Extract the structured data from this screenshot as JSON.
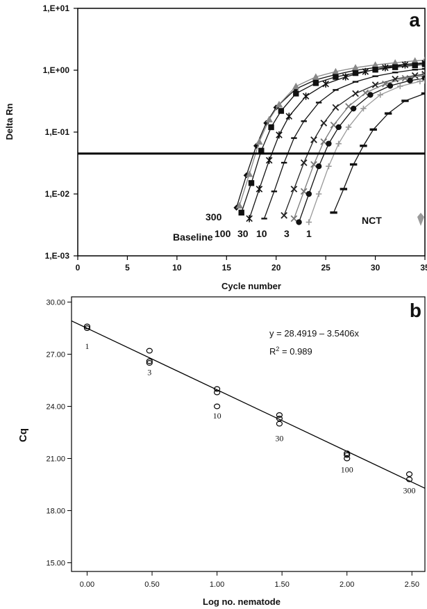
{
  "chart_data": [
    {
      "panel": "a",
      "type": "line",
      "xlabel": "Cycle number",
      "ylabel": "Delta Rn",
      "xlim": [
        0,
        35
      ],
      "ylim": [
        0.001,
        10
      ],
      "y_scale": "log",
      "x_ticks": [
        "0",
        "5",
        "10",
        "15",
        "20",
        "25",
        "30",
        "35"
      ],
      "y_ticks": [
        "1,E-03",
        "1,E-02",
        "1,E-01",
        "1,E+00",
        "1,E+01"
      ],
      "threshold": 0.045,
      "grid": false,
      "legend": "none",
      "series": [
        {
          "name": "300",
          "marker": "diamond",
          "color": "#111111",
          "x": [
            16.0,
            17.0,
            18.0,
            19.0,
            20.0,
            22.0,
            24.0,
            26.0,
            28.0,
            30.0,
            32.0,
            34.0,
            35.0
          ],
          "y": [
            0.006,
            0.02,
            0.06,
            0.14,
            0.25,
            0.5,
            0.7,
            0.85,
            1.0,
            1.1,
            1.2,
            1.28,
            1.32
          ]
        },
        {
          "name": "300",
          "marker": "triangle",
          "color": "#888888",
          "x": [
            16.3,
            17.3,
            18.3,
            19.3,
            20.3,
            22.0,
            24.0,
            26.0,
            28.0,
            30.0,
            32.0,
            34.0,
            35.0
          ],
          "y": [
            0.0065,
            0.021,
            0.07,
            0.16,
            0.28,
            0.55,
            0.78,
            0.95,
            1.1,
            1.22,
            1.32,
            1.42,
            1.45
          ]
        },
        {
          "name": "100",
          "marker": "square",
          "color": "#111111",
          "x": [
            16.5,
            17.5,
            18.5,
            19.5,
            20.5,
            22.0,
            24.0,
            26.0,
            28.0,
            30.0,
            32.0,
            34.0,
            35.0
          ],
          "y": [
            0.005,
            0.015,
            0.05,
            0.12,
            0.22,
            0.42,
            0.62,
            0.78,
            0.9,
            1.02,
            1.12,
            1.2,
            1.25
          ]
        },
        {
          "name": "30",
          "marker": "star",
          "color": "#111111",
          "x": [
            17.3,
            18.3,
            19.3,
            20.3,
            21.3,
            23.0,
            25.0,
            27.0,
            29.0,
            31.0,
            33.0,
            35.0
          ],
          "y": [
            0.004,
            0.012,
            0.035,
            0.09,
            0.18,
            0.38,
            0.6,
            0.78,
            0.95,
            1.1,
            1.22,
            1.3
          ]
        },
        {
          "name": "10",
          "marker": "dash",
          "color": "#111111",
          "x": [
            18.8,
            19.8,
            20.8,
            21.8,
            22.8,
            24.3,
            26.0,
            28.0,
            30.0,
            32.0,
            34.0,
            35.0
          ],
          "y": [
            0.004,
            0.011,
            0.032,
            0.08,
            0.15,
            0.3,
            0.48,
            0.65,
            0.8,
            0.92,
            1.02,
            1.05
          ]
        },
        {
          "name": "10",
          "marker": "cross",
          "color": "#222222",
          "x": [
            20.8,
            21.8,
            22.8,
            23.8,
            24.8,
            26.0,
            28.0,
            30.0,
            32.0,
            34.0,
            35.0
          ],
          "y": [
            0.0045,
            0.012,
            0.032,
            0.075,
            0.14,
            0.25,
            0.42,
            0.58,
            0.72,
            0.82,
            0.86
          ]
        },
        {
          "name": "3",
          "marker": "cross",
          "color": "#777777",
          "x": [
            21.8,
            22.8,
            23.8,
            24.8,
            25.8,
            27.3,
            29.0,
            31.0,
            33.0,
            35.0
          ],
          "y": [
            0.004,
            0.011,
            0.03,
            0.07,
            0.13,
            0.26,
            0.43,
            0.6,
            0.74,
            0.82
          ]
        },
        {
          "name": "3",
          "marker": "circle",
          "color": "#111111",
          "x": [
            22.3,
            23.3,
            24.3,
            25.3,
            26.3,
            27.8,
            29.5,
            31.5,
            33.5,
            35.0
          ],
          "y": [
            0.0035,
            0.01,
            0.028,
            0.065,
            0.12,
            0.24,
            0.4,
            0.56,
            0.68,
            0.74
          ]
        },
        {
          "name": "1",
          "marker": "plus",
          "color": "#999999",
          "x": [
            23.3,
            24.3,
            25.3,
            26.3,
            27.3,
            28.8,
            30.5,
            32.5,
            34.5,
            35.0
          ],
          "y": [
            0.0035,
            0.01,
            0.028,
            0.065,
            0.12,
            0.24,
            0.4,
            0.55,
            0.66,
            0.68
          ]
        },
        {
          "name": "1",
          "marker": "thickdash",
          "color": "#111111",
          "x": [
            25.8,
            26.8,
            27.8,
            28.8,
            29.8,
            31.3,
            33.0,
            35.0
          ],
          "y": [
            0.005,
            0.012,
            0.03,
            0.06,
            0.11,
            0.2,
            0.32,
            0.42
          ]
        }
      ],
      "annotations": [
        "a",
        "300",
        "Baseline",
        "100",
        "30",
        "10",
        "3",
        "1",
        "NCT"
      ]
    },
    {
      "panel": "b",
      "type": "scatter",
      "xlabel": "Log no. nematode",
      "ylabel": "Cq",
      "xlim": [
        -0.12,
        2.6
      ],
      "ylim": [
        14.5,
        30.3
      ],
      "x_ticks": [
        "0.00",
        "0.50",
        "1.00",
        "1.50",
        "2.00",
        "2.50"
      ],
      "y_ticks": [
        "15.00",
        "18.00",
        "21.00",
        "24.00",
        "27.00",
        "30.00"
      ],
      "grid": false,
      "legend": "none",
      "points": [
        {
          "x": 0.0,
          "y": 28.6
        },
        {
          "x": 0.0,
          "y": 28.5
        },
        {
          "x": 0.48,
          "y": 27.2
        },
        {
          "x": 0.48,
          "y": 26.6
        },
        {
          "x": 0.48,
          "y": 26.5
        },
        {
          "x": 1.0,
          "y": 25.0
        },
        {
          "x": 1.0,
          "y": 24.8
        },
        {
          "x": 1.0,
          "y": 24.0
        },
        {
          "x": 1.48,
          "y": 23.5
        },
        {
          "x": 1.48,
          "y": 23.3
        },
        {
          "x": 1.48,
          "y": 23.0
        },
        {
          "x": 2.0,
          "y": 21.3
        },
        {
          "x": 2.0,
          "y": 21.2
        },
        {
          "x": 2.0,
          "y": 21.0
        },
        {
          "x": 2.48,
          "y": 20.1
        },
        {
          "x": 2.48,
          "y": 19.8
        }
      ],
      "regression": {
        "intercept": 28.4919,
        "slope": -3.5406
      },
      "equation": "y = 28.4919 – 3.5406x",
      "r2_prefix": "R",
      "r2_exp": "2",
      "r2_suffix": " = 0.989",
      "point_labels": [
        {
          "text": "1",
          "x": 0.0,
          "y": 27.3
        },
        {
          "text": "3",
          "x": 0.48,
          "y": 25.8
        },
        {
          "text": "10",
          "x": 1.0,
          "y": 23.3
        },
        {
          "text": "30",
          "x": 1.48,
          "y": 22.0
        },
        {
          "text": "100",
          "x": 2.0,
          "y": 20.2
        },
        {
          "text": "300",
          "x": 2.48,
          "y": 19.0
        }
      ]
    }
  ]
}
